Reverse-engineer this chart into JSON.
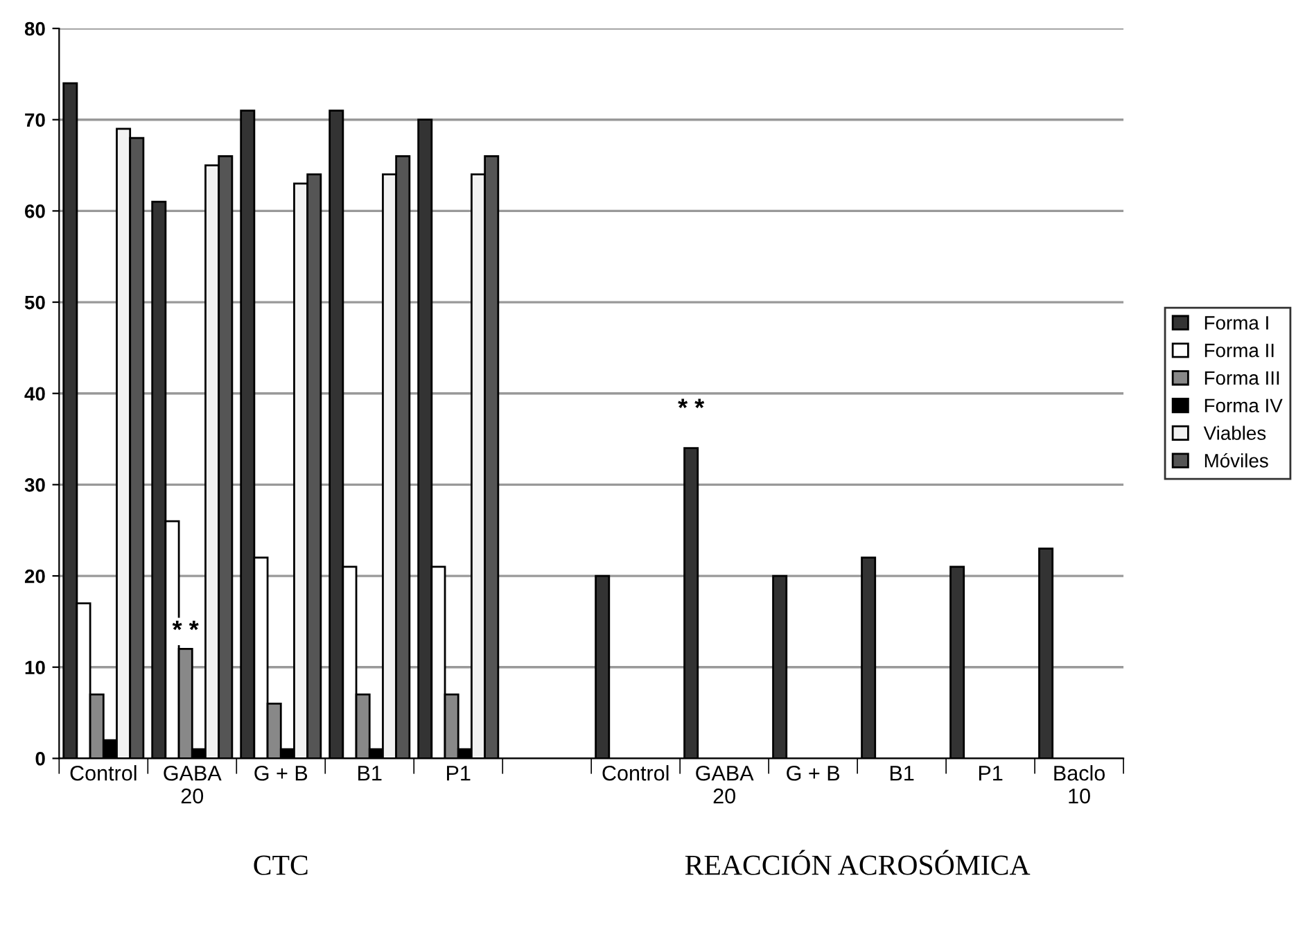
{
  "chart_data": {
    "type": "bar",
    "categories": [
      "Control",
      "GABA\n20",
      "G + B",
      "B1",
      "P1",
      null,
      "Control",
      "GABA\n20",
      "G + B",
      "B1",
      "P1",
      "Baclo\n10"
    ],
    "series": [
      {
        "name": "Forma I",
        "color": "#333333",
        "values": [
          74,
          61,
          71,
          71,
          70,
          null,
          20,
          34,
          20,
          22,
          21,
          23
        ]
      },
      {
        "name": "Forma II",
        "color": "#ffffff",
        "values": [
          17,
          26,
          22,
          21,
          21,
          null,
          null,
          null,
          null,
          null,
          null,
          null
        ]
      },
      {
        "name": "Forma III",
        "color": "#888888",
        "values": [
          7,
          12,
          6,
          7,
          7,
          null,
          null,
          null,
          null,
          null,
          null,
          null
        ]
      },
      {
        "name": "Forma IV",
        "color": "#000000",
        "values": [
          2,
          1,
          1,
          1,
          1,
          null,
          null,
          null,
          null,
          null,
          null,
          null
        ]
      },
      {
        "name": "Viables",
        "color": "#f2f2f2",
        "values": [
          69,
          65,
          63,
          64,
          64,
          null,
          null,
          null,
          null,
          null,
          null,
          null
        ]
      },
      {
        "name": "Móviles",
        "color": "#555555",
        "values": [
          68,
          66,
          64,
          66,
          66,
          null,
          null,
          null,
          null,
          null,
          null,
          null
        ]
      }
    ],
    "ylim": [
      0,
      80
    ],
    "yticks": [
      0,
      10,
      20,
      30,
      40,
      50,
      60,
      70,
      80
    ],
    "grid": "y",
    "legend": "right",
    "annotations": [
      "CTC",
      "REACCIÓN ACROSÓMICA",
      {
        "text": "* *",
        "x": "GABA\n20",
        "y": 12
      },
      "* *"
    ]
  }
}
